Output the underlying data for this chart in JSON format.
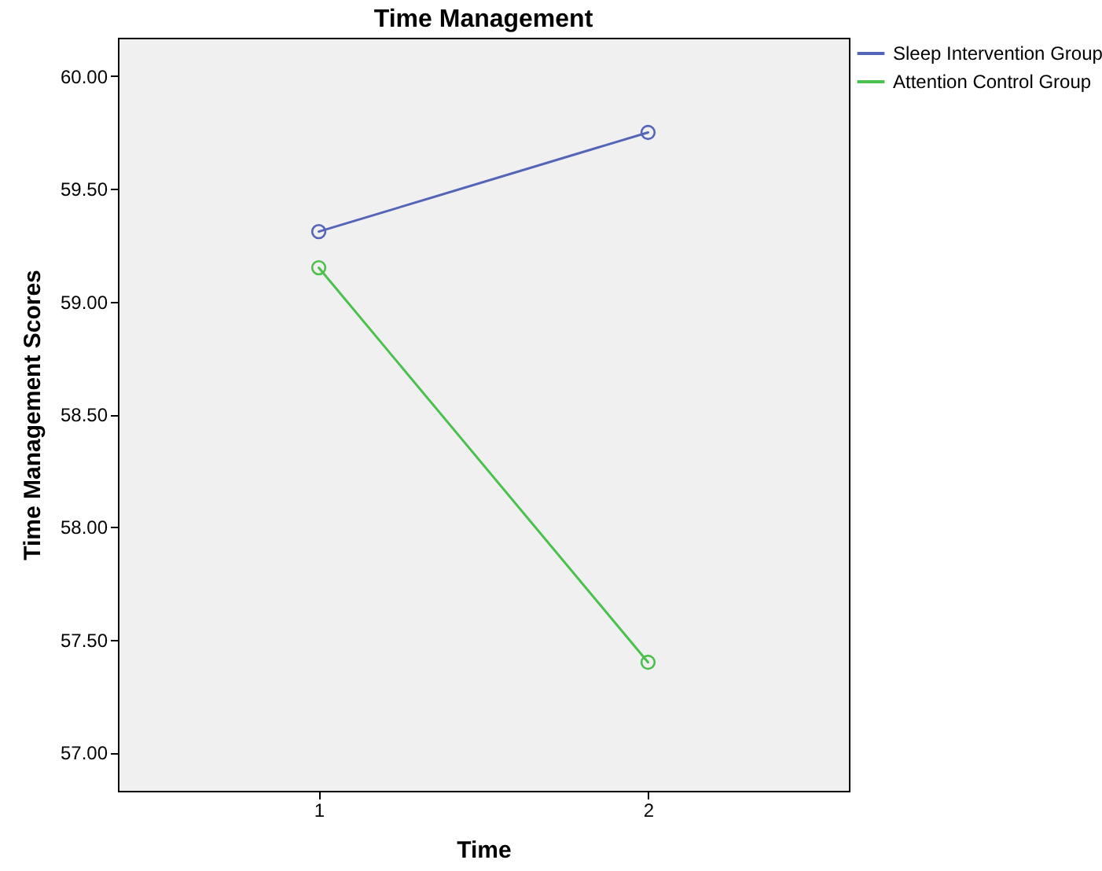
{
  "chart_data": {
    "type": "line",
    "title": "Time Management",
    "xlabel": "Time",
    "ylabel": "Time Management Scores",
    "categories": [
      "1",
      "2"
    ],
    "series": [
      {
        "name": "Sleep Intervention Group",
        "color": "#5465b8",
        "values": [
          59.31,
          59.75
        ]
      },
      {
        "name": "Attention Control Group",
        "color": "#4cc04c",
        "values": [
          59.15,
          57.4
        ]
      }
    ],
    "ylim": [
      56.83,
      60.17
    ],
    "yticks": [
      {
        "value": 57,
        "label": "57.00"
      },
      {
        "value": 57.5,
        "label": "57.50"
      },
      {
        "value": 58,
        "label": "58.00"
      },
      {
        "value": 58.5,
        "label": "58.50"
      },
      {
        "value": 59,
        "label": "59.00"
      },
      {
        "value": 59.5,
        "label": "59.50"
      },
      {
        "value": 60,
        "label": "60.00"
      }
    ],
    "grid": false,
    "legend": "top right",
    "marker": "circle",
    "line_style": "solid"
  }
}
